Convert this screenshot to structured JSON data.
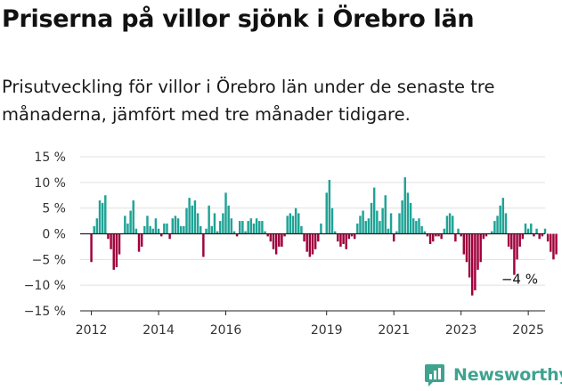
{
  "header": {
    "title": "Priserna på villor sjönk i Örebro län",
    "subtitle": "Prisutveckling för villor i Örebro län under de senaste tre månaderna, jämfört med tre månader tidigare."
  },
  "brand": {
    "name": "Newsworthy",
    "color": "#3fa38f"
  },
  "colors": {
    "positive": "#1fa396",
    "negative": "#a0003c",
    "zero_line": "#222222",
    "grid": "#e0e0e0"
  },
  "chart_data": {
    "type": "bar",
    "title": "",
    "xlabel": "",
    "ylabel": "",
    "ylim": [
      -15,
      15
    ],
    "yticks": [
      15,
      10,
      5,
      0,
      -5,
      -10,
      -15
    ],
    "ytick_labels": [
      "15 %",
      "10 %",
      "5 %",
      "0 %",
      "−5 %",
      "−10 %",
      "−15 %"
    ],
    "x_start": "2012-01",
    "xlim": [
      "2011-09",
      "2025-07"
    ],
    "xticks": [
      "2012",
      "2014",
      "2016",
      "2019",
      "2021",
      "2023",
      "2025"
    ],
    "annotation": {
      "text": "−4 %",
      "x": "2025-03",
      "y": -4
    },
    "values": [
      -5.5,
      1.5,
      3,
      6.5,
      6,
      7.5,
      -1,
      -3,
      -7,
      -6.5,
      -4,
      0,
      3.5,
      2,
      4.5,
      6.5,
      1,
      -3.5,
      -2.5,
      1.5,
      3.5,
      1.5,
      1,
      3,
      1,
      -0.5,
      2,
      2,
      -1,
      3,
      3.5,
      3,
      1.5,
      1.5,
      5,
      7,
      5.5,
      6.5,
      4,
      1.5,
      -4.5,
      1,
      5.5,
      1.5,
      4,
      0.5,
      2.5,
      4,
      8,
      5.5,
      3,
      0.5,
      -0.5,
      2.5,
      2.5,
      0.5,
      2.5,
      3,
      2,
      3,
      2.5,
      2.5,
      0.5,
      -0.5,
      -1.5,
      -3,
      -4,
      -2.5,
      -2.5,
      -0.5,
      3.5,
      4,
      3.5,
      5,
      4,
      1.5,
      -1.5,
      -3.5,
      -4.5,
      -4,
      -3,
      -1.5,
      2,
      0,
      8,
      10.5,
      5,
      0.5,
      -1.5,
      -2.5,
      -2,
      -3,
      -1,
      -0.5,
      -1,
      2,
      3.5,
      4.5,
      2.5,
      3,
      6,
      9,
      4.5,
      2.5,
      5,
      7.5,
      1,
      4,
      -1.5,
      0.5,
      4,
      6.5,
      11,
      8,
      6,
      3,
      2.5,
      3,
      1.5,
      0.5,
      -0.5,
      -2,
      -1.5,
      -0.5,
      -0.5,
      -1,
      1,
      3.5,
      4,
      3.5,
      -1.5,
      1,
      -0.5,
      -4,
      -5.5,
      -8.5,
      -12,
      -11,
      -7,
      -5.5,
      -1,
      -0.5,
      0,
      0.5,
      2.5,
      3.5,
      5.5,
      7,
      4,
      -2.5,
      -3,
      -8,
      -5,
      -2.5,
      -1,
      2,
      1,
      2,
      -0.5,
      1,
      -1,
      -0.5,
      1,
      -1.5,
      -3.5,
      -5,
      -4
    ]
  }
}
